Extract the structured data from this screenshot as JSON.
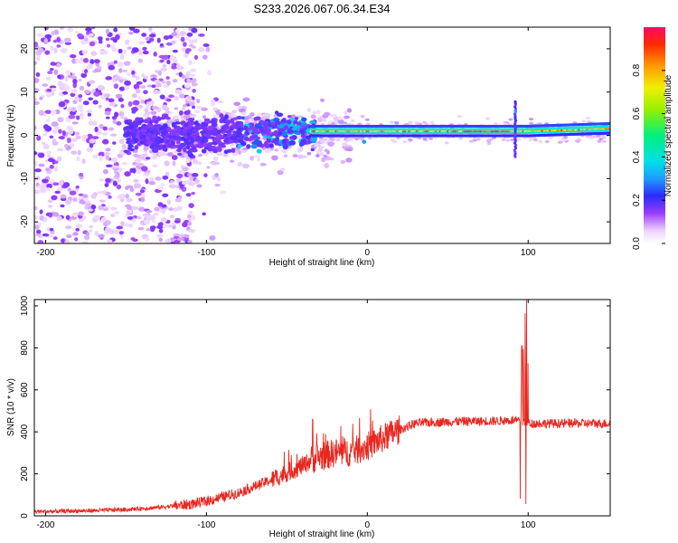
{
  "title": "S233.2026.067.06.34.E34",
  "chart_data": [
    {
      "type": "heatmap",
      "xlabel": "Height of straight line (km)",
      "ylabel": "Frequency (Hz)",
      "xlim": [
        -207,
        151
      ],
      "ylim": [
        -25,
        25
      ],
      "xticks": [
        -200,
        -100,
        0,
        100
      ],
      "yticks": [
        -20,
        -10,
        0,
        10,
        20
      ],
      "colorbar": {
        "label": "Normalized spectral amplitude",
        "range": [
          0.0,
          1.0
        ],
        "ticks": [
          "0.0",
          "0.2",
          "0.4",
          "0.6",
          "0.8"
        ],
        "tick_values": [
          0.0,
          0.2,
          0.4,
          0.6,
          0.8
        ]
      },
      "features": [
        {
          "name": "strong-band",
          "x": [
            -35,
            151
          ],
          "freq_hz": [
            0.5,
            2.0
          ],
          "amplitude": 0.9
        },
        {
          "name": "clustered-energy",
          "x": [
            -150,
            -35
          ],
          "freq_hz": [
            -8,
            7
          ],
          "amplitude": 0.35
        },
        {
          "name": "diffuse-scatter",
          "x": [
            -207,
            -110
          ],
          "freq_hz": [
            -25,
            25
          ],
          "amplitude": 0.1
        },
        {
          "name": "spike",
          "x": [
            92,
            92
          ],
          "freq_hz": [
            -5,
            8
          ],
          "amplitude": 0.3
        }
      ]
    },
    {
      "type": "line",
      "xlabel": "Height of straight line (km)",
      "ylabel": "SNR (10 * v/v)",
      "xlim": [
        -207,
        151
      ],
      "ylim": [
        0,
        1030
      ],
      "xticks": [
        -200,
        -100,
        0,
        100
      ],
      "yticks": [
        0,
        200,
        400,
        600,
        800,
        1000
      ],
      "series": [
        {
          "name": "SNR",
          "color": "#e8271f",
          "x": [
            -207,
            -190,
            -170,
            -150,
            -130,
            -110,
            -100,
            -90,
            -80,
            -70,
            -60,
            -50,
            -40,
            -34,
            -30,
            -20,
            -10,
            0,
            10,
            20,
            30,
            40,
            50,
            60,
            70,
            80,
            90,
            95,
            98,
            100,
            105,
            110,
            120,
            130,
            140,
            151
          ],
          "y": [
            20,
            22,
            25,
            30,
            40,
            55,
            70,
            90,
            110,
            140,
            170,
            205,
            240,
            270,
            280,
            300,
            305,
            330,
            370,
            410,
            440,
            445,
            448,
            450,
            450,
            452,
            455,
            450,
            445,
            440,
            440,
            440,
            440,
            440,
            440,
            440
          ]
        }
      ],
      "annotations": [
        {
          "x": -34,
          "y": 460,
          "label": ""
        },
        {
          "x": 96,
          "y": 810,
          "label": ""
        },
        {
          "x": 99,
          "y": 1030,
          "label": ""
        },
        {
          "x": 96,
          "y": 50,
          "label": ""
        }
      ]
    }
  ]
}
